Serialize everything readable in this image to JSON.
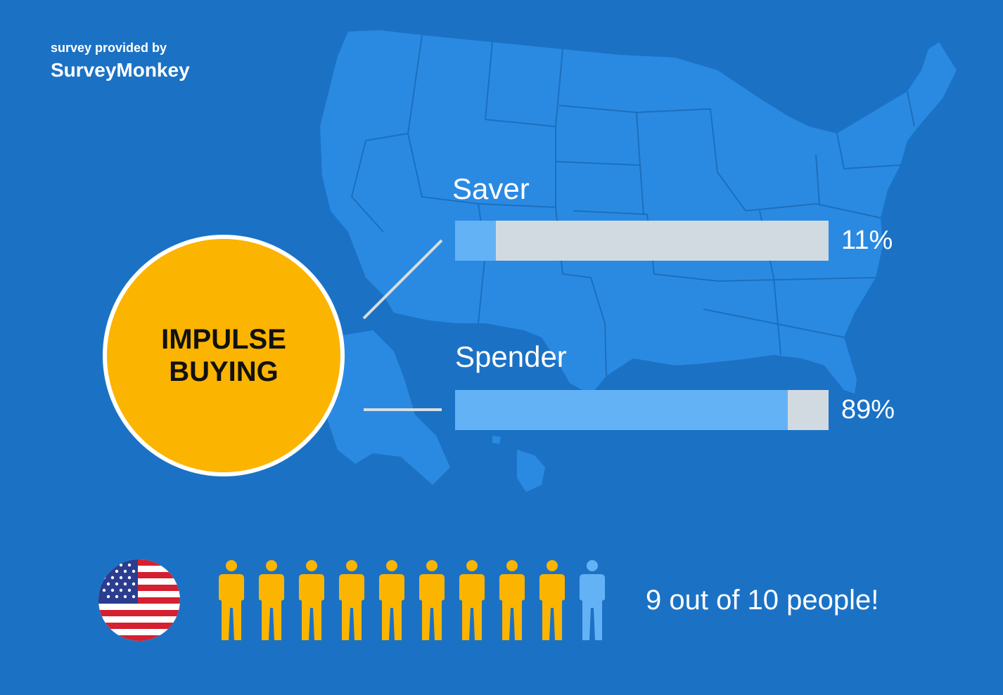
{
  "credit": {
    "prefix": "survey provided by",
    "brand": "SurveyMonkey"
  },
  "topic": {
    "line1": "IMPULSE",
    "line2": "BUYING"
  },
  "colors": {
    "background": "#1b72c5",
    "map": "#2a8ae2",
    "circle": "#fbb400",
    "bar_fill": "#63b2f5",
    "bar_track": "#d2dae1",
    "person_highlight": "#fbb400",
    "person_other": "#63b2f5"
  },
  "chart_data": {
    "type": "bar",
    "orientation": "horizontal",
    "categories": [
      "Saver",
      "Spender"
    ],
    "values": [
      11,
      89
    ],
    "value_labels": [
      "11%",
      "89%"
    ],
    "unit": "%",
    "xlim": [
      0,
      100
    ]
  },
  "pictogram": {
    "total": 10,
    "highlighted": 9,
    "caption": "9 out of 10 people!"
  },
  "icons": {
    "flag": "us-flag-icon",
    "person": "person-icon",
    "map": "us-map-background"
  }
}
